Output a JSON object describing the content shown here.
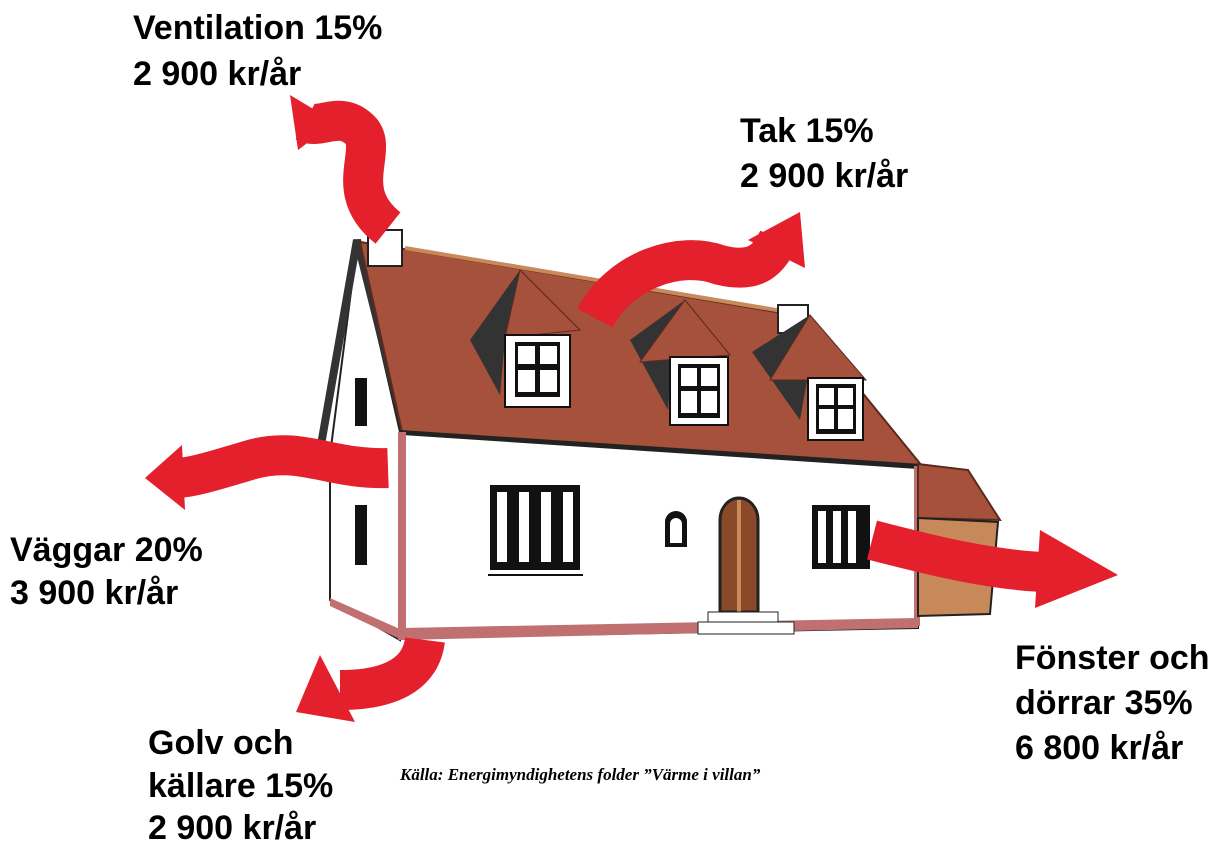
{
  "labels": [
    {
      "lines": [
        "Ventilation 15%",
        "2 900 kr/år"
      ]
    },
    {
      "lines": [
        "Tak 15%",
        "2 900 kr/år"
      ]
    },
    {
      "lines": [
        "Väggar 20%",
        "3 900 kr/år"
      ]
    },
    {
      "lines": [
        "Golv och",
        "källare 15%",
        "2 900 kr/år"
      ]
    },
    {
      "lines": [
        "Fönster och",
        "dörrar 35%",
        "6 800 kr/år"
      ]
    }
  ],
  "source": "Källa: Energimyndighetens folder ”Värme i villan”"
}
